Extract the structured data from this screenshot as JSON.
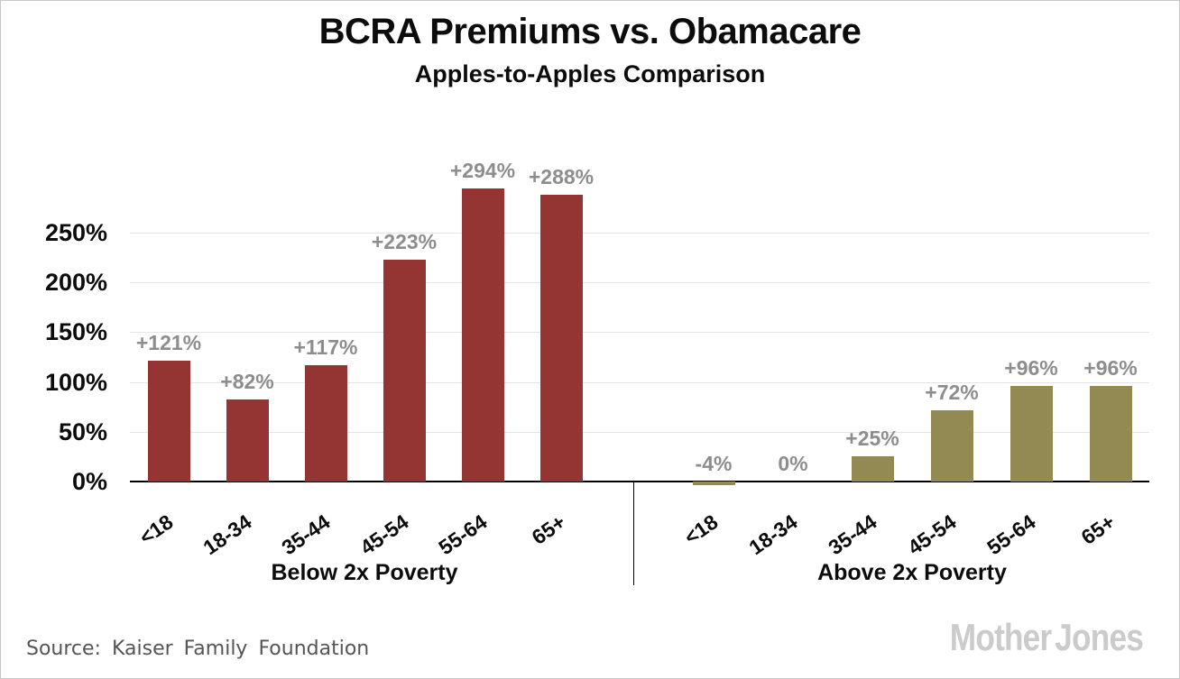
{
  "header": {
    "title": "BCRA Premiums vs. Obamacare",
    "subtitle": "Apples-to-Apples Comparison"
  },
  "footer": {
    "source_label": "Source:",
    "source_value": "Kaiser Family Foundation",
    "brand": "Mother Jones",
    "brand_color": "#cbcbcb",
    "source_color": "#555555"
  },
  "chart_data": {
    "type": "bar",
    "title": "BCRA Premiums vs. Obamacare",
    "subtitle": "Apples-to-Apples Comparison",
    "xlabel": "",
    "ylabel": "",
    "ylim": [
      -10,
      300
    ],
    "grid": true,
    "gridline_color": "#e4e4e4",
    "y_ticks": [
      {
        "value": 0,
        "label": "0%"
      },
      {
        "value": 50,
        "label": "50%"
      },
      {
        "value": 100,
        "label": "100%"
      },
      {
        "value": 150,
        "label": "150%"
      },
      {
        "value": 200,
        "label": "200%"
      },
      {
        "value": 250,
        "label": "250%"
      }
    ],
    "categories": [
      "<18",
      "18-34",
      "35-44",
      "45-54",
      "55-64",
      "65+"
    ],
    "data_label_color": "#8d8d8d",
    "groups": [
      {
        "name": "Below 2x Poverty",
        "color": "#943534",
        "values": [
          121,
          82,
          117,
          223,
          294,
          288
        ],
        "labels": [
          "+121%",
          "+82%",
          "+117%",
          "+223%",
          "+294%",
          "+288%"
        ]
      },
      {
        "name": "Above 2x Poverty",
        "color": "#938a53",
        "values": [
          -4,
          0,
          25,
          72,
          96,
          96
        ],
        "labels": [
          "-4%",
          "0%",
          "+25%",
          "+72%",
          "+96%",
          "+96%"
        ]
      }
    ]
  }
}
